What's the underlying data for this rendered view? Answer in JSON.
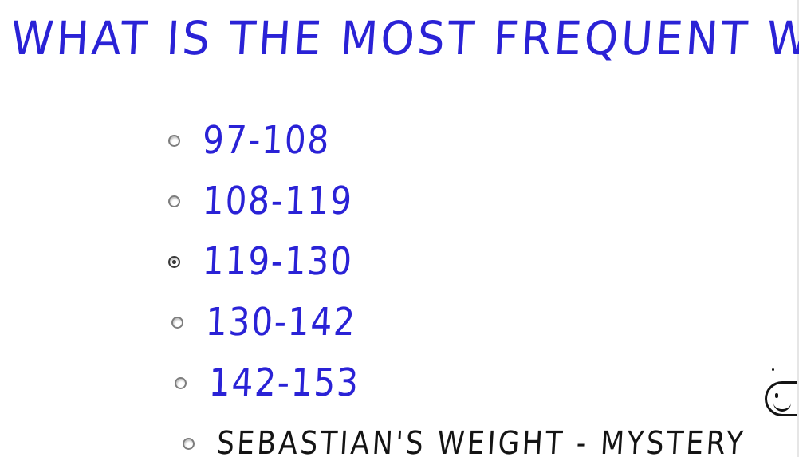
{
  "question": "WHAT IS THE MOST FREQUENT WEIGHT?",
  "options": [
    {
      "label": "97-108",
      "selected": false
    },
    {
      "label": "108-119",
      "selected": false
    },
    {
      "label": "119-130",
      "selected": true
    },
    {
      "label": "130-142",
      "selected": false
    },
    {
      "label": "142-153",
      "selected": false
    },
    {
      "label": "SEBASTIAN'S WEIGHT - MYSTERY",
      "selected": false
    }
  ],
  "icons": {
    "smiley": "smiley-face-icon"
  },
  "colors": {
    "ink_blue": "#2a22d6",
    "ink_black": "#141414",
    "background": "#ffffff"
  }
}
